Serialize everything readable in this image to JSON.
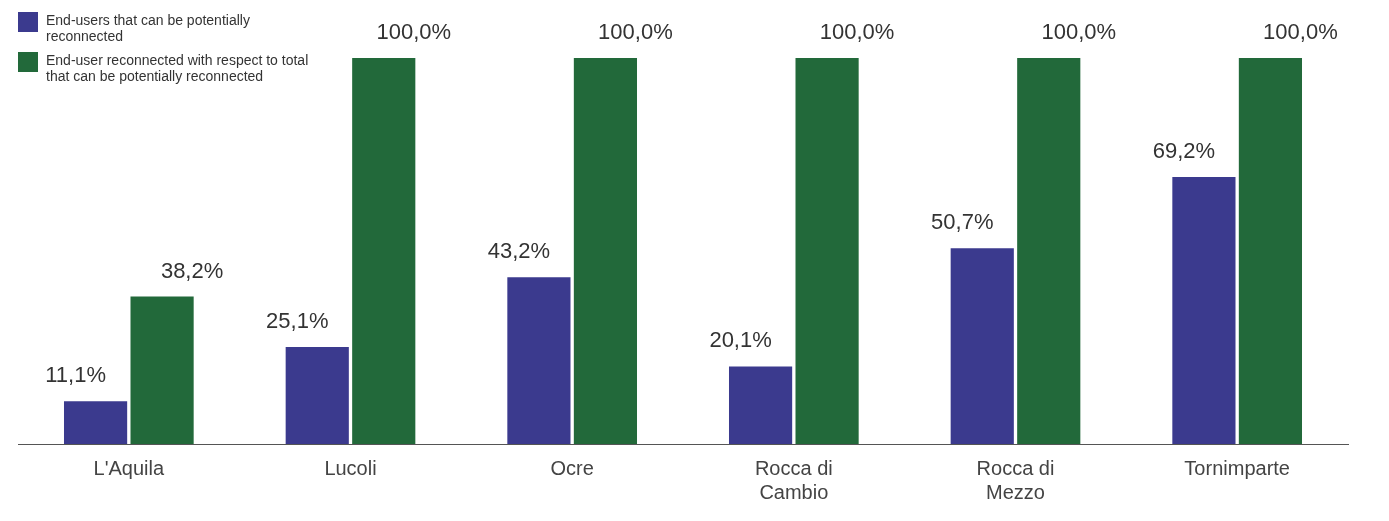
{
  "chart_data": {
    "type": "bar",
    "categories": [
      "L'Aquila",
      "Lucoli",
      "Ocre",
      "Rocca di Cambio",
      "Rocca di Mezzo",
      "Tornimparte"
    ],
    "series": [
      {
        "name": "End-users that can be potentially reconnected",
        "color": "#3b3a8e",
        "values": [
          11.1,
          25.1,
          43.2,
          20.1,
          50.7,
          69.2
        ],
        "value_labels": [
          "11,1%",
          "25,1%",
          "43,2%",
          "20,1%",
          "50,7%",
          "69,2%"
        ]
      },
      {
        "name": "End-user reconnected with respect to total that can be potentially reconnected",
        "color": "#22693a",
        "values": [
          38.2,
          100,
          100,
          100,
          100,
          100
        ],
        "value_labels": [
          "38,2%",
          "100,0%",
          "100,0%",
          "100,0%",
          "100,0%",
          "100,0%"
        ]
      }
    ],
    "legend": "top left",
    "grid": false
  }
}
